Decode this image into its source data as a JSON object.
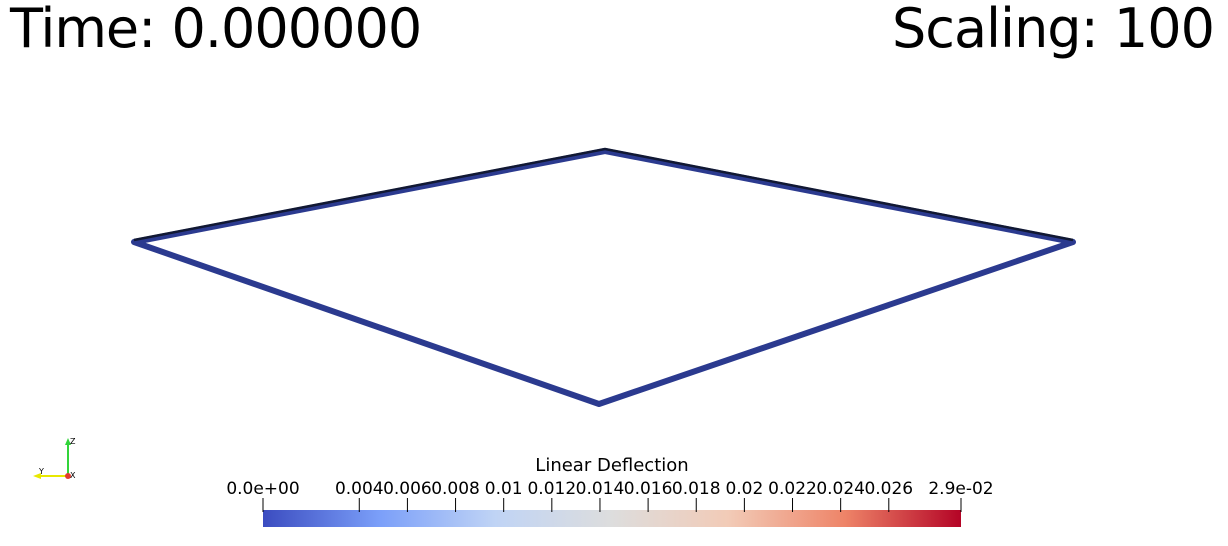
{
  "overlay": {
    "time_text": "Time: 0.000000",
    "scaling_text": "Scaling: 100"
  },
  "mesh": {
    "shape": "quadrilateral-outline",
    "edge_color": "#2b3a8f",
    "edge_dark_color": "#111833"
  },
  "axes": {
    "x_label": "X",
    "y_label": "Y",
    "z_label": "Z",
    "x_color": "#e23b2f",
    "y_color": "#e8e800",
    "z_color": "#32d43a"
  },
  "colorbar": {
    "title": "Linear Deflection",
    "tick_labels": [
      "0.0e+00",
      "0.004",
      "0.006",
      "0.008",
      "0.01",
      "0.012",
      "0.014",
      "0.016",
      "0.018",
      "0.02",
      "0.022",
      "0.024",
      "0.026",
      "2.9e-02"
    ],
    "tick_values": [
      0,
      0.004,
      0.006,
      0.008,
      0.01,
      0.012,
      0.014,
      0.016,
      0.018,
      0.02,
      0.022,
      0.024,
      0.026,
      0.029
    ],
    "range": [
      0,
      0.029
    ],
    "colormap": "Cool to Warm",
    "colors": [
      "#3b4cc0",
      "#7b9ff9",
      "#c0d4f5",
      "#dddddd",
      "#f2cbb7",
      "#ee8468",
      "#b40426"
    ]
  }
}
